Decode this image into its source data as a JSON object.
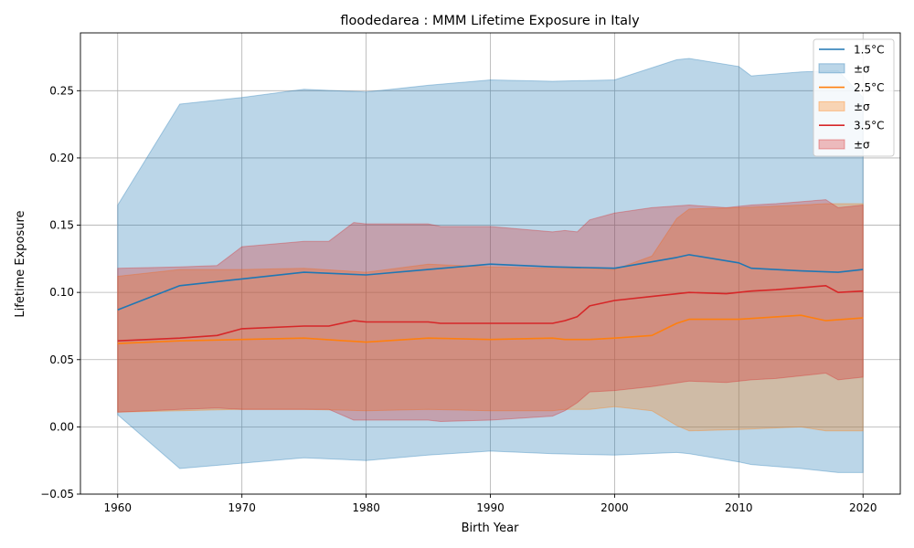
{
  "chart_data": {
    "type": "line",
    "title": "floodedarea : MMM Lifetime Exposure in Italy",
    "xlabel": "Birth Year",
    "ylabel": "Lifetime Exposure",
    "xlim": [
      1957,
      2023
    ],
    "ylim": [
      -0.05,
      0.293
    ],
    "xticks": [
      1960,
      1970,
      1980,
      1990,
      2000,
      2010,
      2020
    ],
    "xtick_labels": [
      "1960",
      "1970",
      "1980",
      "1990",
      "2000",
      "2010",
      "2020"
    ],
    "yticks": [
      -0.05,
      0,
      0.05,
      0.1,
      0.15,
      0.2,
      0.25
    ],
    "ytick_labels": [
      "−0.05",
      "0.00",
      "0.05",
      "0.10",
      "0.15",
      "0.20",
      "0.25"
    ],
    "grid": true,
    "legend_position": "top-right",
    "series": [
      {
        "name": "1.5°C",
        "band_label": "±σ",
        "color": "#1f77b4",
        "x": [
          1960,
          1965,
          1970,
          1975,
          1980,
          1985,
          1990,
          1995,
          2000,
          2005,
          2006,
          2010,
          2011,
          2015,
          2018,
          2020
        ],
        "mean": [
          0.087,
          0.105,
          0.11,
          0.115,
          0.113,
          0.117,
          0.121,
          0.119,
          0.118,
          0.126,
          0.128,
          0.122,
          0.118,
          0.116,
          0.115,
          0.117
        ],
        "upper": [
          0.165,
          0.24,
          0.245,
          0.251,
          0.249,
          0.254,
          0.258,
          0.257,
          0.258,
          0.273,
          0.274,
          0.268,
          0.261,
          0.264,
          0.265,
          0.245
        ],
        "lower": [
          0.009,
          -0.031,
          -0.027,
          -0.023,
          -0.025,
          -0.021,
          -0.018,
          -0.02,
          -0.021,
          -0.019,
          -0.02,
          -0.026,
          -0.028,
          -0.031,
          -0.034,
          -0.034
        ]
      },
      {
        "name": "2.5°C",
        "band_label": "±σ",
        "color": "#ff7f0e",
        "x": [
          1960,
          1965,
          1970,
          1975,
          1980,
          1985,
          1990,
          1995,
          1996,
          1998,
          2000,
          2003,
          2005,
          2006,
          2010,
          2015,
          2017,
          2020
        ],
        "mean": [
          0.062,
          0.064,
          0.065,
          0.066,
          0.063,
          0.066,
          0.065,
          0.066,
          0.065,
          0.065,
          0.066,
          0.068,
          0.077,
          0.08,
          0.08,
          0.083,
          0.079,
          0.081
        ],
        "upper": [
          0.112,
          0.117,
          0.117,
          0.118,
          0.115,
          0.121,
          0.119,
          0.118,
          0.118,
          0.118,
          0.117,
          0.127,
          0.155,
          0.162,
          0.163,
          0.165,
          0.166,
          0.166
        ],
        "lower": [
          0.011,
          0.012,
          0.013,
          0.013,
          0.012,
          0.013,
          0.012,
          0.012,
          0.013,
          0.013,
          0.015,
          0.012,
          0.001,
          -0.003,
          -0.002,
          0.0,
          -0.003,
          -0.003
        ]
      },
      {
        "name": "3.5°C",
        "band_label": "±σ",
        "color": "#d62728",
        "x": [
          1960,
          1965,
          1968,
          1970,
          1975,
          1977,
          1979,
          1980,
          1985,
          1986,
          1990,
          1995,
          1996,
          1997,
          1998,
          2000,
          2003,
          2006,
          2009,
          2011,
          2013,
          2017,
          2018,
          2020
        ],
        "mean": [
          0.064,
          0.066,
          0.068,
          0.073,
          0.075,
          0.075,
          0.079,
          0.078,
          0.078,
          0.077,
          0.077,
          0.077,
          0.079,
          0.082,
          0.09,
          0.094,
          0.097,
          0.1,
          0.099,
          0.101,
          0.102,
          0.105,
          0.1,
          0.101
        ],
        "upper": [
          0.118,
          0.119,
          0.12,
          0.134,
          0.138,
          0.138,
          0.152,
          0.151,
          0.151,
          0.149,
          0.149,
          0.145,
          0.146,
          0.145,
          0.154,
          0.159,
          0.163,
          0.165,
          0.163,
          0.165,
          0.166,
          0.169,
          0.163,
          0.165
        ],
        "lower": [
          0.011,
          0.013,
          0.014,
          0.013,
          0.013,
          0.013,
          0.005,
          0.005,
          0.005,
          0.004,
          0.005,
          0.008,
          0.012,
          0.018,
          0.026,
          0.027,
          0.03,
          0.034,
          0.033,
          0.035,
          0.036,
          0.04,
          0.035,
          0.037
        ]
      }
    ]
  }
}
